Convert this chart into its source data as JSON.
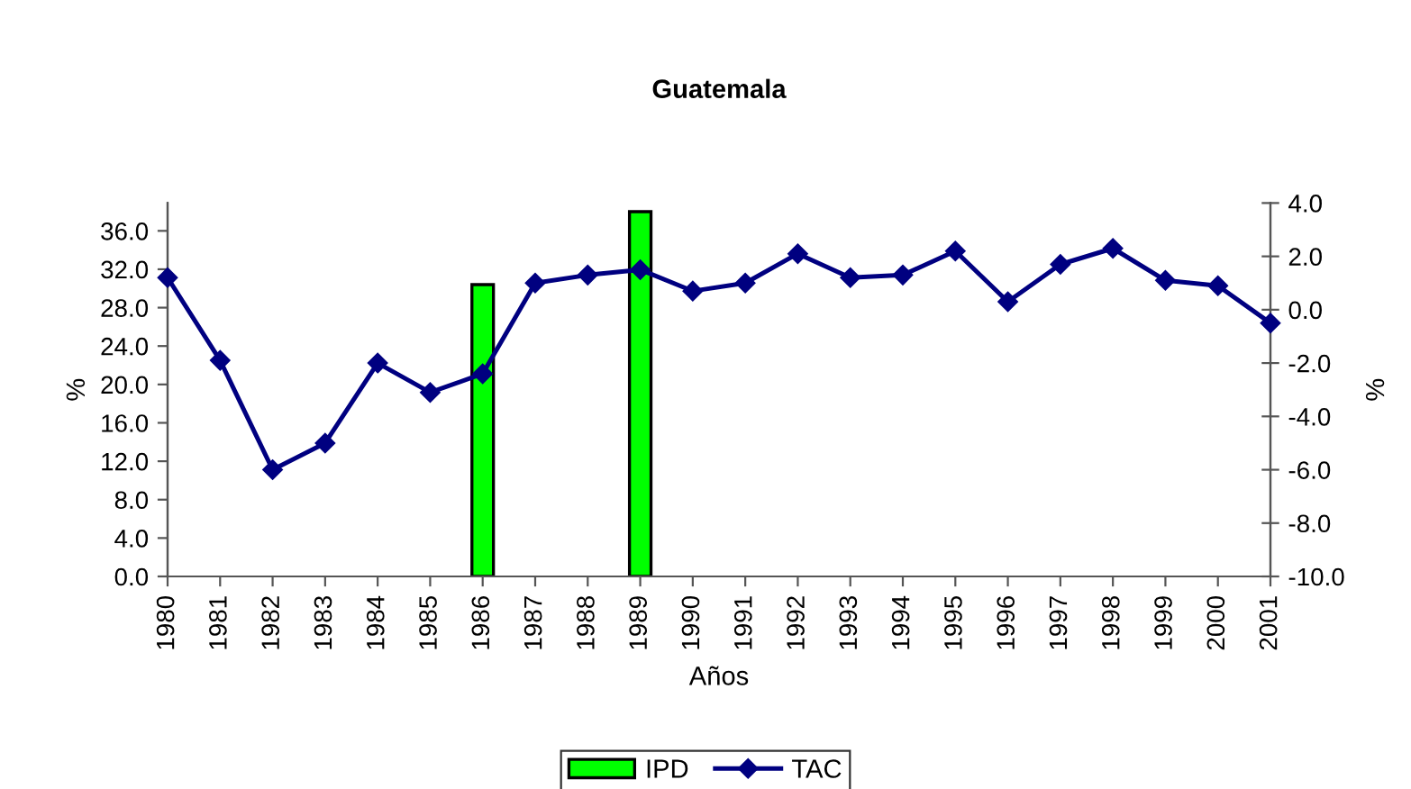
{
  "chart_data": {
    "type": "bar",
    "title": "Guatemala",
    "xlabel": "Años",
    "ylabel": "%",
    "y2label": "%",
    "categories": [
      "1980",
      "1981",
      "1982",
      "1983",
      "1984",
      "1985",
      "1986",
      "1987",
      "1988",
      "1989",
      "1990",
      "1991",
      "1992",
      "1993",
      "1994",
      "1995",
      "1996",
      "1997",
      "1998",
      "1999",
      "2000",
      "2001"
    ],
    "series": [
      {
        "name": "IPD",
        "color": "#00ff00",
        "values": [
          null,
          null,
          null,
          null,
          null,
          null,
          30.4,
          null,
          null,
          38.0,
          null,
          null,
          null,
          null,
          null,
          null,
          null,
          null,
          null,
          null,
          null,
          null
        ]
      },
      {
        "name": "TAC",
        "type": "line",
        "axis": "y2",
        "color": "#000080",
        "values": [
          1.2,
          -1.9,
          -6.0,
          -5.0,
          -2.0,
          -3.1,
          -2.4,
          1.0,
          1.3,
          1.5,
          0.7,
          1.0,
          2.1,
          1.2,
          1.3,
          2.2,
          0.3,
          1.7,
          2.3,
          1.1,
          0.9,
          -0.5
        ]
      }
    ],
    "ylim": [
      0,
      38.9
    ],
    "yticks": [
      {
        "value": 0,
        "label": "0.0"
      },
      {
        "value": 4,
        "label": "4.0"
      },
      {
        "value": 8,
        "label": "8.0"
      },
      {
        "value": 12,
        "label": "12.0"
      },
      {
        "value": 16,
        "label": "16.0"
      },
      {
        "value": 20,
        "label": "20.0"
      },
      {
        "value": 24,
        "label": "24.0"
      },
      {
        "value": 28,
        "label": "28.0"
      },
      {
        "value": 32,
        "label": "32.0"
      },
      {
        "value": 36,
        "label": "36.0"
      }
    ],
    "y2lim": [
      -10,
      4
    ],
    "y2ticks": [
      {
        "value": -10,
        "label": "-10.0"
      },
      {
        "value": -8,
        "label": "-8.0"
      },
      {
        "value": -6,
        "label": "-6.0"
      },
      {
        "value": -4,
        "label": "-4.0"
      },
      {
        "value": -2,
        "label": "-2.0"
      },
      {
        "value": 0,
        "label": "0.0"
      },
      {
        "value": 2,
        "label": "2.0"
      },
      {
        "value": 4,
        "label": "4.0"
      }
    ],
    "marker": "diamond",
    "line_style": "solid",
    "legend": "bottom",
    "grid": false
  }
}
